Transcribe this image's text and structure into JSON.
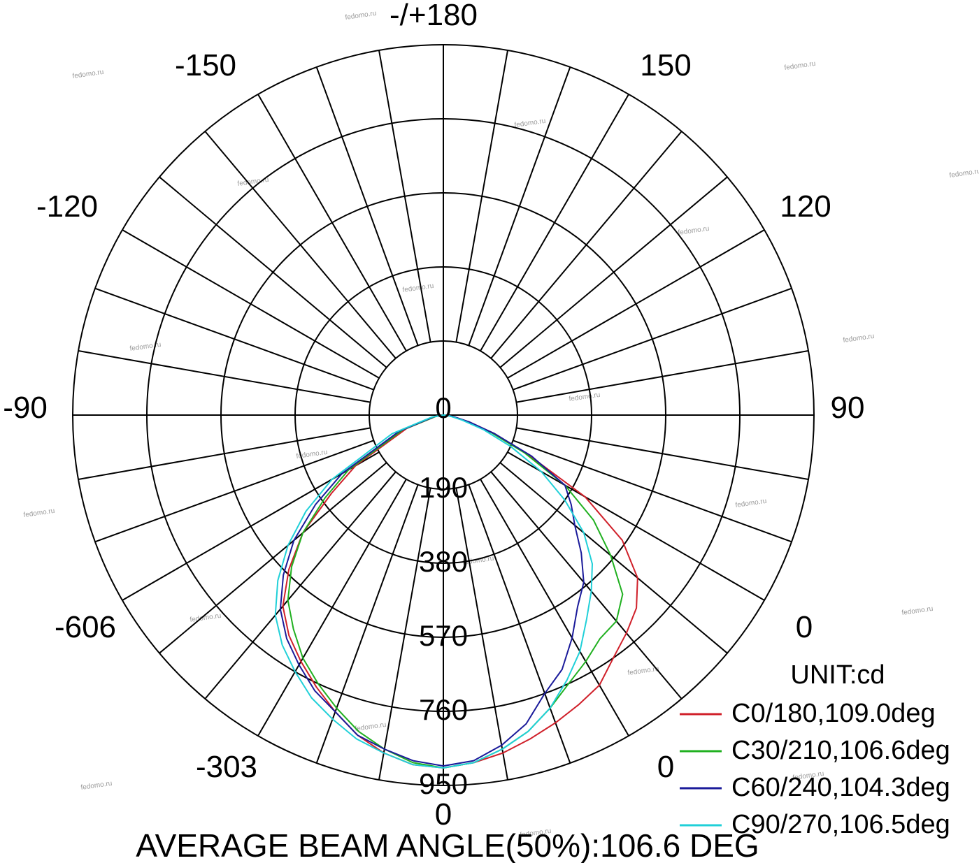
{
  "chart_data": {
    "type": "line",
    "subtype": "polar",
    "angle_labels": [
      {
        "angle": 180,
        "text": "-/+180"
      },
      {
        "angle": -150,
        "text": "-150"
      },
      {
        "angle": 150,
        "text": "150"
      },
      {
        "angle": -120,
        "text": "-120"
      },
      {
        "angle": 120,
        "text": "120"
      },
      {
        "angle": -90,
        "text": "-90"
      },
      {
        "angle": 90,
        "text": "90"
      },
      {
        "angle": 0,
        "text": "0"
      }
    ],
    "radial_ticks": [
      190,
      380,
      570,
      760,
      950
    ],
    "radial_labels": [
      "190",
      "380",
      "570",
      "760",
      "950"
    ],
    "rmax": 950,
    "ring_count": 5,
    "spoke_step_deg": 10,
    "center_label": "0",
    "side_labels": {
      "left_upper": "-606",
      "left_lower": "-303",
      "right_upper": "0",
      "right_lower": "0"
    },
    "unit": "UNIT:cd",
    "footer": "AVERAGE BEAM ANGLE(50%):106.6 DEG",
    "legend_position": "bottom-right",
    "series": [
      {
        "name": "C0/180,109.0deg",
        "color": "#d0202a",
        "angles": [
          -90,
          -80,
          -70,
          -60,
          -55,
          -50,
          -45,
          -40,
          -35,
          -30,
          -25,
          -20,
          -15,
          -10,
          -5,
          0,
          5,
          10,
          15,
          20,
          25,
          30,
          35,
          40,
          45,
          50,
          55,
          60,
          65,
          70,
          75,
          80,
          85,
          90
        ],
        "values": [
          0,
          20,
          100,
          260,
          350,
          470,
          560,
          640,
          690,
          730,
          770,
          810,
          850,
          880,
          900,
          905,
          895,
          880,
          860,
          840,
          820,
          800,
          760,
          730,
          700,
          650,
          560,
          420,
          240,
          140,
          70,
          30,
          10,
          0
        ]
      },
      {
        "name": "C30/210,106.6deg",
        "color": "#20b020",
        "angles": [
          -90,
          -80,
          -70,
          -60,
          -55,
          -50,
          -45,
          -40,
          -35,
          -30,
          -25,
          -20,
          -15,
          -10,
          -5,
          0,
          5,
          10,
          15,
          20,
          25,
          30,
          35,
          40,
          45,
          50,
          55,
          60,
          65,
          70,
          75,
          80,
          85,
          90
        ],
        "values": [
          0,
          20,
          110,
          280,
          370,
          470,
          550,
          620,
          670,
          720,
          760,
          800,
          840,
          870,
          895,
          905,
          895,
          870,
          840,
          800,
          760,
          730,
          700,
          690,
          650,
          560,
          470,
          360,
          230,
          130,
          60,
          25,
          8,
          0
        ]
      },
      {
        "name": "C60/240,104.3deg",
        "color": "#1a1a9a",
        "angles": [
          -90,
          -80,
          -70,
          -60,
          -55,
          -50,
          -45,
          -40,
          -35,
          -30,
          -25,
          -20,
          -15,
          -10,
          -5,
          0,
          5,
          10,
          15,
          20,
          25,
          30,
          35,
          40,
          45,
          50,
          55,
          60,
          65,
          70,
          75,
          80,
          85,
          90
        ],
        "values": [
          0,
          25,
          120,
          300,
          400,
          500,
          580,
          650,
          700,
          740,
          780,
          810,
          850,
          870,
          890,
          900,
          890,
          860,
          820,
          760,
          720,
          660,
          600,
          560,
          500,
          440,
          400,
          360,
          250,
          140,
          70,
          30,
          10,
          0
        ]
      },
      {
        "name": "C90/270,106.5deg",
        "color": "#20d0d8",
        "angles": [
          -90,
          -80,
          -70,
          -60,
          -55,
          -50,
          -45,
          -40,
          -35,
          -30,
          -25,
          -20,
          -15,
          -10,
          -5,
          0,
          5,
          10,
          15,
          20,
          25,
          30,
          35,
          40,
          45,
          50,
          55,
          60,
          65,
          70,
          75,
          80,
          85,
          90
        ],
        "values": [
          0,
          30,
          140,
          330,
          430,
          520,
          600,
          670,
          720,
          760,
          800,
          830,
          860,
          880,
          900,
          905,
          895,
          870,
          840,
          800,
          750,
          700,
          640,
          590,
          540,
          470,
          380,
          290,
          190,
          110,
          50,
          20,
          6,
          0
        ]
      }
    ]
  },
  "watermark_text": "fedomo.ru"
}
